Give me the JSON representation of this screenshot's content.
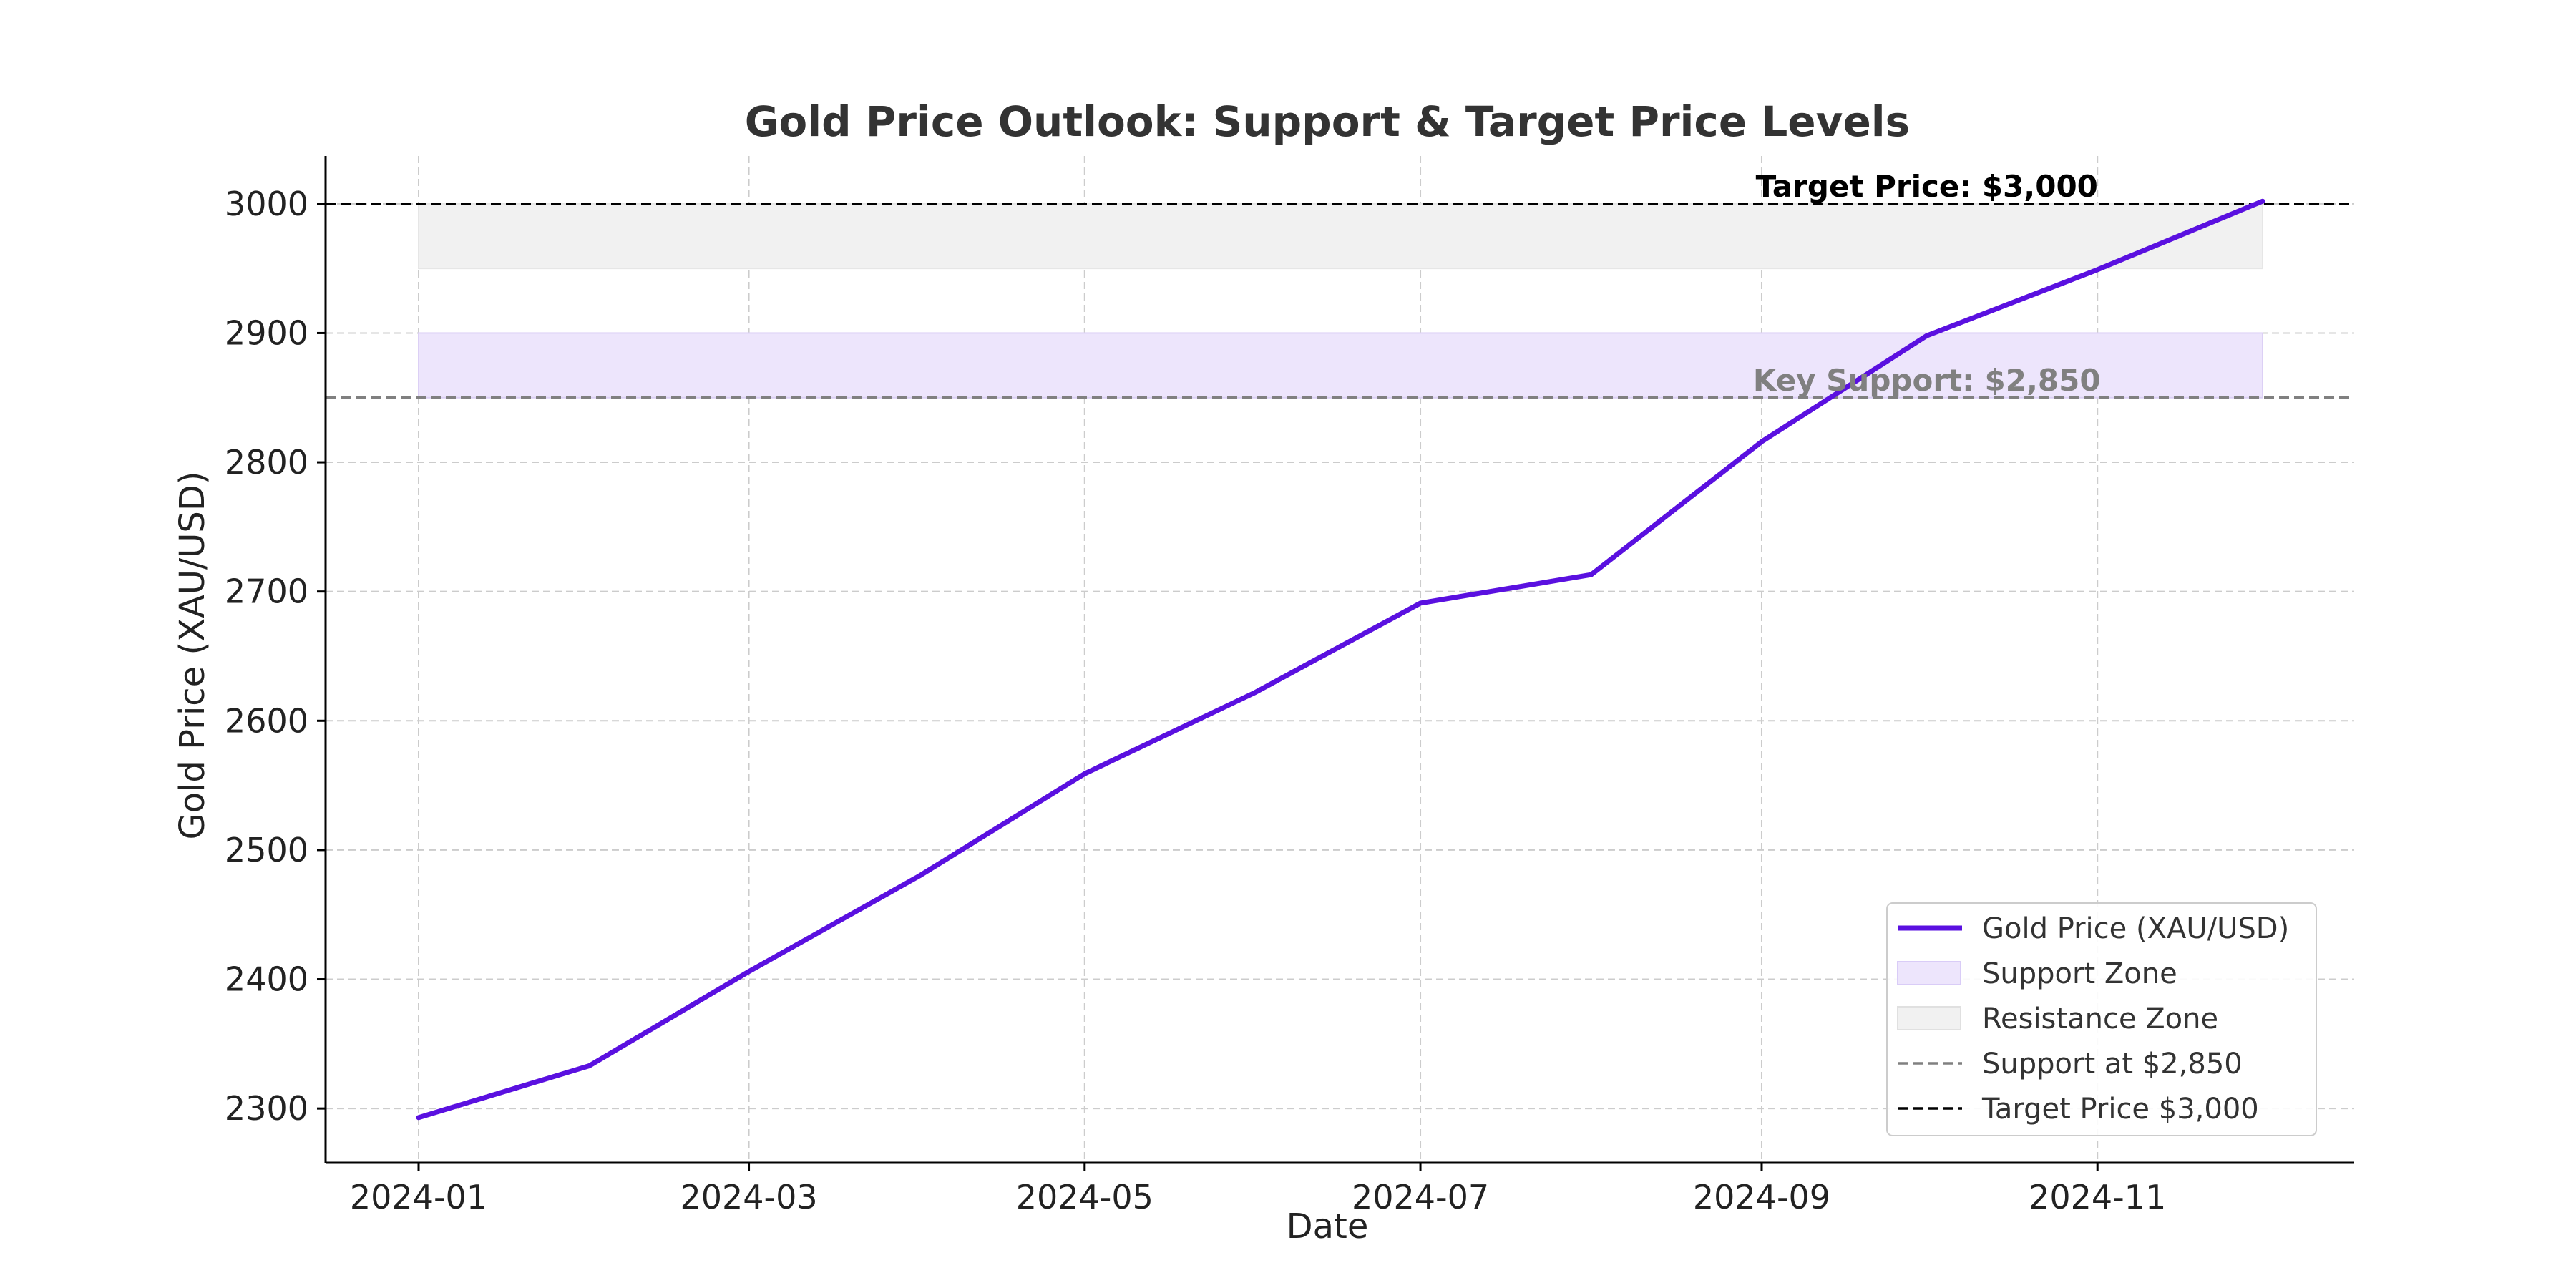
{
  "chart_data": {
    "type": "line",
    "title": "Gold Price Outlook: Support & Target Price Levels",
    "xlabel": "Date",
    "ylabel": "Gold Price (XAU/USD)",
    "x": [
      "2024-01",
      "2024-02",
      "2024-03",
      "2024-04",
      "2024-05",
      "2024-06",
      "2024-07",
      "2024-08",
      "2024-09",
      "2024-10",
      "2024-11",
      "2024-12"
    ],
    "x_ticks": [
      "2024-01",
      "2024-03",
      "2024-05",
      "2024-07",
      "2024-09",
      "2024-11"
    ],
    "y_ticks": [
      2300,
      2400,
      2500,
      2600,
      2700,
      2800,
      2900,
      3000
    ],
    "ylim": [
      2258,
      3037
    ],
    "grid": true,
    "series": [
      {
        "name": "Gold Price (XAU/USD)",
        "color": "#5a10e0",
        "values": [
          2293,
          2333,
          2406,
          2480,
          2559,
          2622,
          2691,
          2713,
          2816,
          2898,
          2949,
          3002
        ]
      }
    ],
    "zones": [
      {
        "name": "Support Zone",
        "y0": 2850,
        "y1": 2900,
        "color": "#ede5fc"
      },
      {
        "name": "Resistance Zone",
        "y0": 2950,
        "y1": 3000,
        "color": "#f1f1f1"
      }
    ],
    "hlines": [
      {
        "name": "Support at $2,850",
        "y": 2850,
        "color": "#808080"
      },
      {
        "name": "Target Price $3,000",
        "y": 3000,
        "color": "#000000"
      }
    ],
    "annotations": [
      {
        "text": "Target Price: $3,000",
        "x": "2024-10",
        "y": 3000,
        "color": "#000000"
      },
      {
        "text": "Key Support: $2,850",
        "x": "2024-10",
        "y": 2850,
        "color": "#808080"
      }
    ],
    "legend": {
      "position": "lower-right",
      "entries": [
        "Gold Price (XAU/USD)",
        "Support Zone",
        "Resistance Zone",
        "Support at $2,850",
        "Target Price $3,000"
      ]
    }
  }
}
